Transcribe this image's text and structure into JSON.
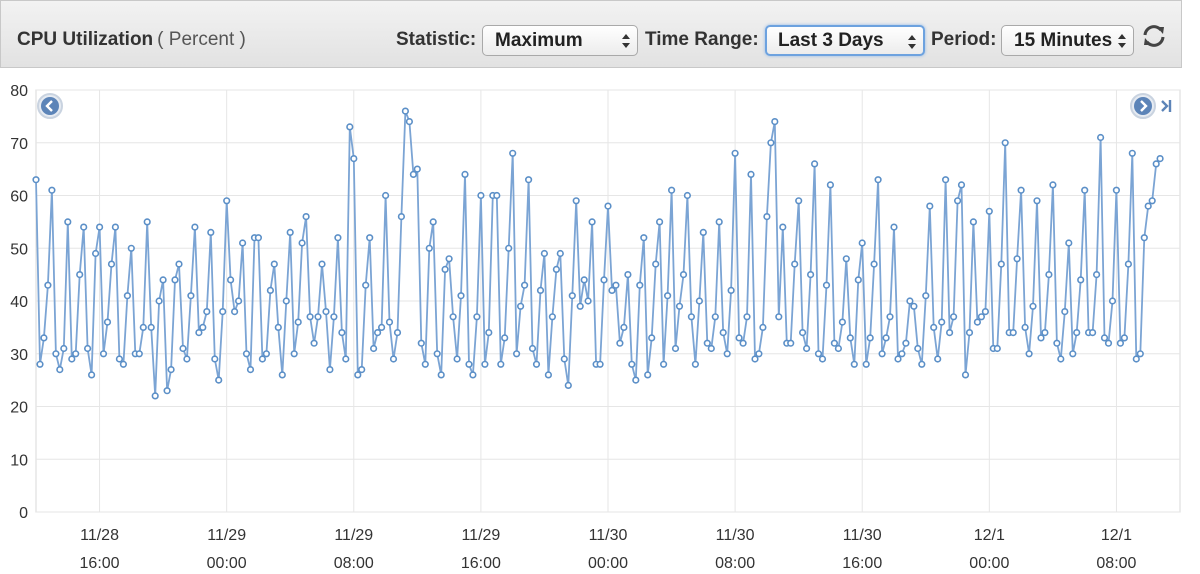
{
  "header": {
    "title": "CPU Utilization",
    "units": "( Percent )",
    "statistic_label": "Statistic:",
    "statistic_value": "Maximum",
    "time_range_label": "Time Range:",
    "time_range_value": "Last 3 Days",
    "period_label": "Period:",
    "period_value": "15 Minutes"
  },
  "icons": {
    "refresh": "refresh-icon",
    "prev": "chevron-left-icon",
    "next": "chevron-right-icon",
    "latest": "skip-to-end-icon"
  },
  "colors": {
    "line": "#7ba4d4",
    "marker_stroke": "#5b8fc7",
    "grid": "#e6e6e6",
    "nav_button": "#5c84b8"
  },
  "chart_data": {
    "type": "line",
    "title": "CPU Utilization",
    "ylabel": "Percent",
    "ylim": [
      0,
      80
    ],
    "yticks": [
      0,
      10,
      20,
      30,
      40,
      50,
      60,
      70,
      80
    ],
    "xlim": [
      "2015-11-28T12:00",
      "2015-12-01T12:00"
    ],
    "xticks": [
      {
        "t": "2015-11-28T16:00",
        "date": "11/28",
        "time": "16:00"
      },
      {
        "t": "2015-11-29T00:00",
        "date": "11/29",
        "time": "00:00"
      },
      {
        "t": "2015-11-29T08:00",
        "date": "11/29",
        "time": "08:00"
      },
      {
        "t": "2015-11-29T16:00",
        "date": "11/29",
        "time": "16:00"
      },
      {
        "t": "2015-11-30T00:00",
        "date": "11/30",
        "time": "00:00"
      },
      {
        "t": "2015-11-30T08:00",
        "date": "11/30",
        "time": "08:00"
      },
      {
        "t": "2015-11-30T16:00",
        "date": "11/30",
        "time": "16:00"
      },
      {
        "t": "2015-12-01T00:00",
        "date": "12/1",
        "time": "00:00"
      },
      {
        "t": "2015-12-01T08:00",
        "date": "12/1",
        "time": "08:00"
      }
    ],
    "grid": true,
    "legend": "none",
    "series": [
      {
        "x_start": "2015-11-28T12:00",
        "x_step_minutes": 15,
        "values": [
          63,
          28,
          33,
          43,
          61,
          30,
          27,
          31,
          55,
          29,
          30,
          45,
          54,
          31,
          26,
          49,
          54,
          30,
          36,
          47,
          54,
          29,
          28,
          41,
          50,
          30,
          30,
          35,
          55,
          35,
          22,
          40,
          44,
          23,
          27,
          44,
          47,
          31,
          29,
          41,
          54,
          34,
          35,
          38,
          53,
          29,
          25,
          38,
          59,
          44,
          38,
          40,
          51,
          30,
          27,
          52,
          52,
          29,
          30,
          42,
          47,
          35,
          26,
          40,
          53,
          30,
          36,
          51,
          56,
          37,
          32,
          37,
          47,
          38,
          27,
          37,
          52,
          34,
          29,
          73,
          67,
          26,
          27,
          43,
          52,
          31,
          34,
          35,
          60,
          36,
          29,
          34,
          56,
          76,
          74,
          64,
          65,
          32,
          28,
          50,
          55,
          30,
          26,
          46,
          48,
          37,
          29,
          41,
          64,
          28,
          26,
          37,
          60,
          28,
          34,
          60,
          60,
          28,
          33,
          50,
          68,
          30,
          39,
          43,
          63,
          31,
          28,
          42,
          49,
          26,
          37,
          46,
          49,
          29,
          24,
          41,
          59,
          39,
          44,
          40,
          55,
          28,
          28,
          44,
          58,
          42,
          43,
          32,
          35,
          45,
          28,
          25,
          43,
          52,
          26,
          33,
          47,
          55,
          28,
          41,
          61,
          31,
          39,
          45,
          60,
          37,
          28,
          40,
          53,
          32,
          31,
          37,
          55,
          34,
          30,
          42,
          68,
          33,
          32,
          37,
          64,
          29,
          30,
          35,
          56,
          70,
          74,
          37,
          54,
          32,
          32,
          47,
          59,
          34,
          31,
          45,
          66,
          30,
          29,
          43,
          62,
          32,
          31,
          36,
          48,
          33,
          28,
          44,
          51,
          28,
          33,
          47,
          63,
          30,
          33,
          37,
          54,
          29,
          30,
          32,
          40,
          39,
          31,
          28,
          41,
          58,
          35,
          29,
          36,
          63,
          34,
          37,
          59,
          62,
          26,
          34,
          55,
          36,
          37,
          38,
          57,
          31,
          31,
          47,
          70,
          34,
          34,
          48,
          61,
          35,
          30,
          39,
          59,
          33,
          34,
          45,
          62,
          32,
          29,
          38,
          51,
          30,
          34,
          44,
          61,
          34,
          34,
          45,
          71,
          33,
          32,
          40,
          61,
          32,
          33,
          47,
          68,
          29,
          30,
          52,
          58,
          59,
          66,
          67
        ]
      }
    ]
  }
}
